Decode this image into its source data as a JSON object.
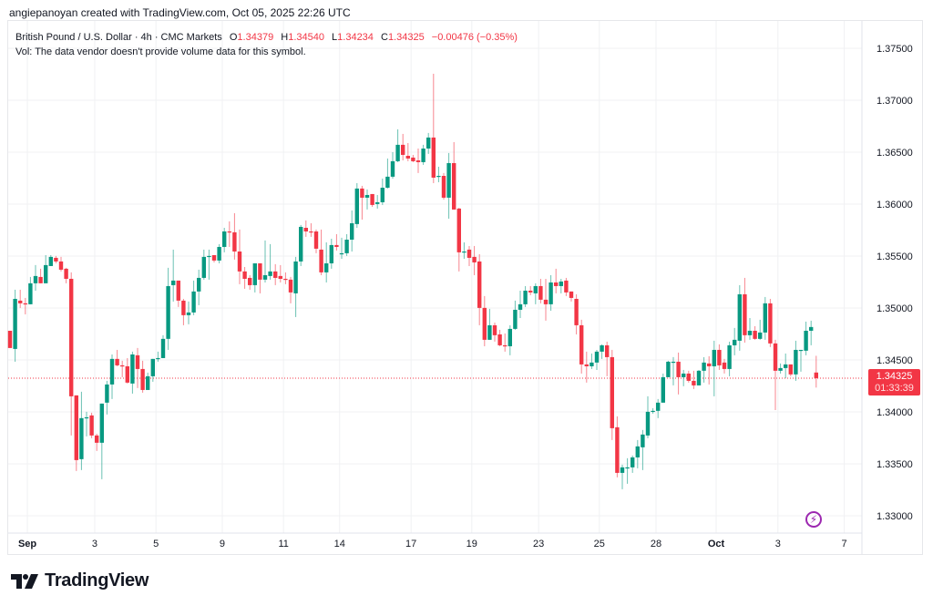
{
  "credit": "angiepanoyan created with TradingView.com, Oct 05, 2025 22:26 UTC",
  "legend": {
    "symbol": "British Pound / U.S. Dollar · 4h · CMC Markets",
    "o_label": "O",
    "o": "1.34379",
    "h_label": "H",
    "h": "1.34540",
    "l_label": "L",
    "l": "1.34234",
    "c_label": "C",
    "c": "1.34325",
    "change": "−0.00476 (−0.35%)",
    "vol": "Vol: The data vendor doesn't provide volume data for this symbol."
  },
  "last_price": {
    "price": "1.34325",
    "countdown": "01:33:39"
  },
  "brand": "TradingView",
  "icons": {
    "replay": "lightning-icon",
    "logo": "tradingview-logo"
  },
  "colors": {
    "up": "#089981",
    "down": "#f23645",
    "grid": "#f0f1f3",
    "text": "#131722"
  },
  "chart_data": {
    "type": "candlestick",
    "symbol": "GBPUSD",
    "interval": "4h",
    "ylim": [
      1.3275,
      1.3785
    ],
    "y_ticks": [
      "1.37500",
      "1.37000",
      "1.36500",
      "1.36000",
      "1.35500",
      "1.35000",
      "1.34500",
      "1.34000",
      "1.33500",
      "1.33000"
    ],
    "x_ticks": [
      {
        "label": "Sep",
        "index": 3.4,
        "bold": true
      },
      {
        "label": "3",
        "index": 16.6
      },
      {
        "label": "5",
        "index": 28.6
      },
      {
        "label": "9",
        "index": 41.6
      },
      {
        "label": "11",
        "index": 53.6
      },
      {
        "label": "14",
        "index": 64.6
      },
      {
        "label": "17",
        "index": 78.6
      },
      {
        "label": "19",
        "index": 90.5
      },
      {
        "label": "23",
        "index": 103.6
      },
      {
        "label": "25",
        "index": 115.5
      },
      {
        "label": "28",
        "index": 126.6
      },
      {
        "label": "Oct",
        "index": 138.4,
        "bold": true
      },
      {
        "label": "3",
        "index": 150.5
      },
      {
        "label": "7",
        "index": 163.5
      }
    ],
    "ohlc": [
      [
        1.34781,
        1.34781,
        1.34615,
        1.34615
      ],
      [
        1.34606,
        1.35176,
        1.34483,
        1.35088
      ],
      [
        1.35071,
        1.35176,
        1.35001,
        1.35045
      ],
      [
        1.35045,
        1.35097,
        1.34939,
        1.35036
      ],
      [
        1.35036,
        1.35299,
        1.35036,
        1.35238
      ],
      [
        1.35238,
        1.35413,
        1.35167,
        1.35308
      ],
      [
        1.35299,
        1.35378,
        1.35238,
        1.35238
      ],
      [
        1.35238,
        1.35509,
        1.35238,
        1.35413
      ],
      [
        1.35404,
        1.35509,
        1.35404,
        1.35492
      ],
      [
        1.35483,
        1.35501,
        1.3543,
        1.35448
      ],
      [
        1.35448,
        1.35492,
        1.35352,
        1.35369
      ],
      [
        1.35378,
        1.35387,
        1.35238,
        1.35281
      ],
      [
        1.35281,
        1.35343,
        1.33773,
        1.3415
      ],
      [
        1.34159,
        1.34159,
        1.33431,
        1.33536
      ],
      [
        1.33545,
        1.34194,
        1.3344,
        1.3394
      ],
      [
        1.3394,
        1.34001,
        1.33764,
        1.33948
      ],
      [
        1.33966,
        1.33992,
        1.33747,
        1.33773
      ],
      [
        1.33773,
        1.3379,
        1.33624,
        1.33703
      ],
      [
        1.33703,
        1.3408,
        1.33352,
        1.3408
      ],
      [
        1.34089,
        1.34299,
        1.33975,
        1.34264
      ],
      [
        1.34264,
        1.34553,
        1.34124,
        1.3451
      ],
      [
        1.3451,
        1.34597,
        1.34439,
        1.34448
      ],
      [
        1.34448,
        1.34492,
        1.34334,
        1.34439
      ],
      [
        1.34439,
        1.34518,
        1.34273,
        1.34282
      ],
      [
        1.34273,
        1.3458,
        1.34176,
        1.34553
      ],
      [
        1.34545,
        1.34615,
        1.34229,
        1.34413
      ],
      [
        1.34413,
        1.34492,
        1.34185,
        1.34211
      ],
      [
        1.34211,
        1.34378,
        1.34211,
        1.34343
      ],
      [
        1.34343,
        1.3451,
        1.3429,
        1.3451
      ],
      [
        1.3451,
        1.3458,
        1.34483,
        1.34518
      ],
      [
        1.34518,
        1.34738,
        1.34518,
        1.34703
      ],
      [
        1.34703,
        1.35387,
        1.34597,
        1.35211
      ],
      [
        1.3522,
        1.35562,
        1.35062,
        1.35264
      ],
      [
        1.35264,
        1.35264,
        1.3501,
        1.35071
      ],
      [
        1.35071,
        1.35088,
        1.34834,
        1.34931
      ],
      [
        1.34931,
        1.35062,
        1.34843,
        1.34957
      ],
      [
        1.34957,
        1.35264,
        1.34931,
        1.35159
      ],
      [
        1.35159,
        1.35369,
        1.35027,
        1.3529
      ],
      [
        1.3529,
        1.35562,
        1.35273,
        1.35492
      ],
      [
        1.35492,
        1.35562,
        1.35273,
        1.35501
      ],
      [
        1.35509,
        1.35509,
        1.35439,
        1.35457
      ],
      [
        1.35457,
        1.35615,
        1.3543,
        1.35588
      ],
      [
        1.35588,
        1.35772,
        1.35536,
        1.35737
      ],
      [
        1.35737,
        1.35834,
        1.35588,
        1.35729
      ],
      [
        1.35729,
        1.35913,
        1.35466,
        1.35544
      ],
      [
        1.35544,
        1.35755,
        1.35229,
        1.35352
      ],
      [
        1.35352,
        1.35395,
        1.35185,
        1.35281
      ],
      [
        1.3529,
        1.35316,
        1.35176,
        1.3522
      ],
      [
        1.3522,
        1.3543,
        1.3515,
        1.3543
      ],
      [
        1.3543,
        1.3543,
        1.35141,
        1.35273
      ],
      [
        1.35273,
        1.3565,
        1.35246,
        1.35316
      ],
      [
        1.35308,
        1.35615,
        1.35273,
        1.35352
      ],
      [
        1.35352,
        1.35422,
        1.3522,
        1.3529
      ],
      [
        1.35308,
        1.35413,
        1.35246,
        1.35281
      ],
      [
        1.35281,
        1.35343,
        1.35229,
        1.35273
      ],
      [
        1.35273,
        1.35299,
        1.35045,
        1.3515
      ],
      [
        1.35141,
        1.35492,
        1.34913,
        1.35448
      ],
      [
        1.35448,
        1.35799,
        1.35404,
        1.35781
      ],
      [
        1.35772,
        1.35843,
        1.35685,
        1.35737
      ],
      [
        1.35737,
        1.35816,
        1.35685,
        1.35729
      ],
      [
        1.35737,
        1.35755,
        1.35527,
        1.35571
      ],
      [
        1.35562,
        1.35755,
        1.35316,
        1.35343
      ],
      [
        1.35343,
        1.35632,
        1.35246,
        1.3543
      ],
      [
        1.3543,
        1.35667,
        1.35378,
        1.35606
      ],
      [
        1.35606,
        1.35711,
        1.35553,
        1.35588
      ],
      [
        1.35518,
        1.35676,
        1.35474,
        1.35527
      ],
      [
        1.35527,
        1.35711,
        1.35501,
        1.35658
      ],
      [
        1.35658,
        1.35939,
        1.35544,
        1.35816
      ],
      [
        1.35808,
        1.36202,
        1.35772,
        1.3615
      ],
      [
        1.3615,
        1.36176,
        1.35851,
        1.36062
      ],
      [
        1.36062,
        1.36141,
        1.35948,
        1.36088
      ],
      [
        1.36097,
        1.36097,
        1.35974,
        1.35992
      ],
      [
        1.36001,
        1.36088,
        1.35957,
        1.36018
      ],
      [
        1.36018,
        1.36246,
        1.35992,
        1.36158
      ],
      [
        1.36158,
        1.36439,
        1.3615,
        1.36264
      ],
      [
        1.36264,
        1.365,
        1.36246,
        1.36413
      ],
      [
        1.36413,
        1.3672,
        1.36404,
        1.36571
      ],
      [
        1.36571,
        1.36676,
        1.36421,
        1.36474
      ],
      [
        1.36465,
        1.36588,
        1.36413,
        1.36439
      ],
      [
        1.36448,
        1.36474,
        1.36404,
        1.36413
      ],
      [
        1.36421,
        1.36535,
        1.36299,
        1.36404
      ],
      [
        1.36404,
        1.36571,
        1.36378,
        1.36535
      ],
      [
        1.36535,
        1.36685,
        1.36483,
        1.36641
      ],
      [
        1.36641,
        1.37255,
        1.36202,
        1.36255
      ],
      [
        1.36264,
        1.3636,
        1.36211,
        1.36272
      ],
      [
        1.36272,
        1.36299,
        1.36044,
        1.36062
      ],
      [
        1.36062,
        1.36492,
        1.3586,
        1.36395
      ],
      [
        1.36395,
        1.36597,
        1.35948,
        1.35948
      ],
      [
        1.35957,
        1.35965,
        1.35352,
        1.35536
      ],
      [
        1.35536,
        1.35632,
        1.35474,
        1.35544
      ],
      [
        1.35562,
        1.35597,
        1.35404,
        1.35483
      ],
      [
        1.35492,
        1.35597,
        1.35316,
        1.35439
      ],
      [
        1.35448,
        1.35518,
        1.34834,
        1.35001
      ],
      [
        1.35001,
        1.35115,
        1.34632,
        1.34694
      ],
      [
        1.34694,
        1.34992,
        1.34694,
        1.34834
      ],
      [
        1.34834,
        1.3486,
        1.34676,
        1.34738
      ],
      [
        1.34746,
        1.3479,
        1.34632,
        1.34641
      ],
      [
        1.34641,
        1.34755,
        1.3458,
        1.34632
      ],
      [
        1.34632,
        1.34834,
        1.34545,
        1.34799
      ],
      [
        1.34799,
        1.35071,
        1.3479,
        1.34983
      ],
      [
        1.34983,
        1.35167,
        1.34904,
        1.35036
      ],
      [
        1.35036,
        1.35211,
        1.3501,
        1.35167
      ],
      [
        1.35167,
        1.35211,
        1.35124,
        1.3515
      ],
      [
        1.35141,
        1.35238,
        1.35036,
        1.35211
      ],
      [
        1.35211,
        1.35281,
        1.35045,
        1.3508
      ],
      [
        1.3508,
        1.35281,
        1.34878,
        1.35036
      ],
      [
        1.35036,
        1.35316,
        1.34974,
        1.35246
      ],
      [
        1.35246,
        1.35378,
        1.35141,
        1.35211
      ],
      [
        1.35211,
        1.35281,
        1.35141,
        1.35255
      ],
      [
        1.35264,
        1.3529,
        1.35115,
        1.3515
      ],
      [
        1.35159,
        1.35159,
        1.35062,
        1.35097
      ],
      [
        1.35088,
        1.35132,
        1.34746,
        1.34834
      ],
      [
        1.34834,
        1.34887,
        1.34369,
        1.34457
      ],
      [
        1.34457,
        1.3458,
        1.34282,
        1.34439
      ],
      [
        1.34439,
        1.34562,
        1.34413,
        1.34475
      ],
      [
        1.34475,
        1.34597,
        1.34404,
        1.3458
      ],
      [
        1.3458,
        1.3465,
        1.3451,
        1.34641
      ],
      [
        1.34641,
        1.34676,
        1.34343,
        1.34527
      ],
      [
        1.34527,
        1.34597,
        1.33729,
        1.33843
      ],
      [
        1.33852,
        1.33957,
        1.3337,
        1.33413
      ],
      [
        1.33413,
        1.33492,
        1.33256,
        1.33466
      ],
      [
        1.33466,
        1.33554,
        1.33308,
        1.33466
      ],
      [
        1.33466,
        1.3358,
        1.33413,
        1.33562
      ],
      [
        1.33562,
        1.33729,
        1.33457,
        1.33668
      ],
      [
        1.33659,
        1.33826,
        1.3344,
        1.33782
      ],
      [
        1.33773,
        1.3415,
        1.33747,
        1.34001
      ],
      [
        1.34001,
        1.34036,
        1.33983,
        1.3401
      ],
      [
        1.3401,
        1.34124,
        1.3394,
        1.34089
      ],
      [
        1.34089,
        1.34369,
        1.34089,
        1.34334
      ],
      [
        1.34334,
        1.34492,
        1.34334,
        1.34483
      ],
      [
        1.34483,
        1.34527,
        1.34255,
        1.34483
      ],
      [
        1.34483,
        1.34571,
        1.34168,
        1.34334
      ],
      [
        1.34334,
        1.34404,
        1.34247,
        1.34369
      ],
      [
        1.34369,
        1.34396,
        1.34282,
        1.34299
      ],
      [
        1.34299,
        1.34396,
        1.3422,
        1.34255
      ],
      [
        1.34255,
        1.34404,
        1.34255,
        1.34396
      ],
      [
        1.34396,
        1.34527,
        1.34282,
        1.34475
      ],
      [
        1.34466,
        1.34536,
        1.34264,
        1.34439
      ],
      [
        1.34439,
        1.34685,
        1.3415,
        1.34597
      ],
      [
        1.34597,
        1.3465,
        1.34404,
        1.34448
      ],
      [
        1.34475,
        1.3451,
        1.34369,
        1.34413
      ],
      [
        1.34413,
        1.34676,
        1.34343,
        1.34641
      ],
      [
        1.34641,
        1.34808,
        1.34545,
        1.34694
      ],
      [
        1.34685,
        1.3522,
        1.34589,
        1.35132
      ],
      [
        1.35132,
        1.3529,
        1.34667,
        1.34738
      ],
      [
        1.34738,
        1.34904,
        1.34694,
        1.34781
      ],
      [
        1.34781,
        1.34825,
        1.34694,
        1.34703
      ],
      [
        1.34703,
        1.34887,
        1.34694,
        1.34764
      ],
      [
        1.34764,
        1.35106,
        1.34694,
        1.35045
      ],
      [
        1.35045,
        1.35088,
        1.34624,
        1.34659
      ],
      [
        1.34659,
        1.34694,
        1.34018,
        1.34396
      ],
      [
        1.34396,
        1.34466,
        1.34369,
        1.34422
      ],
      [
        1.34422,
        1.34562,
        1.34325,
        1.34457
      ],
      [
        1.34457,
        1.34457,
        1.34343,
        1.34361
      ],
      [
        1.34361,
        1.34685,
        1.34299,
        1.34597
      ],
      [
        1.34589,
        1.34597,
        1.34387,
        1.34597
      ],
      [
        1.34589,
        1.34869,
        1.34545,
        1.34781
      ],
      [
        1.34781,
        1.34878,
        1.34641,
        1.34817
      ],
      [
        1.34379,
        1.3454,
        1.34234,
        1.34325
      ]
    ]
  }
}
